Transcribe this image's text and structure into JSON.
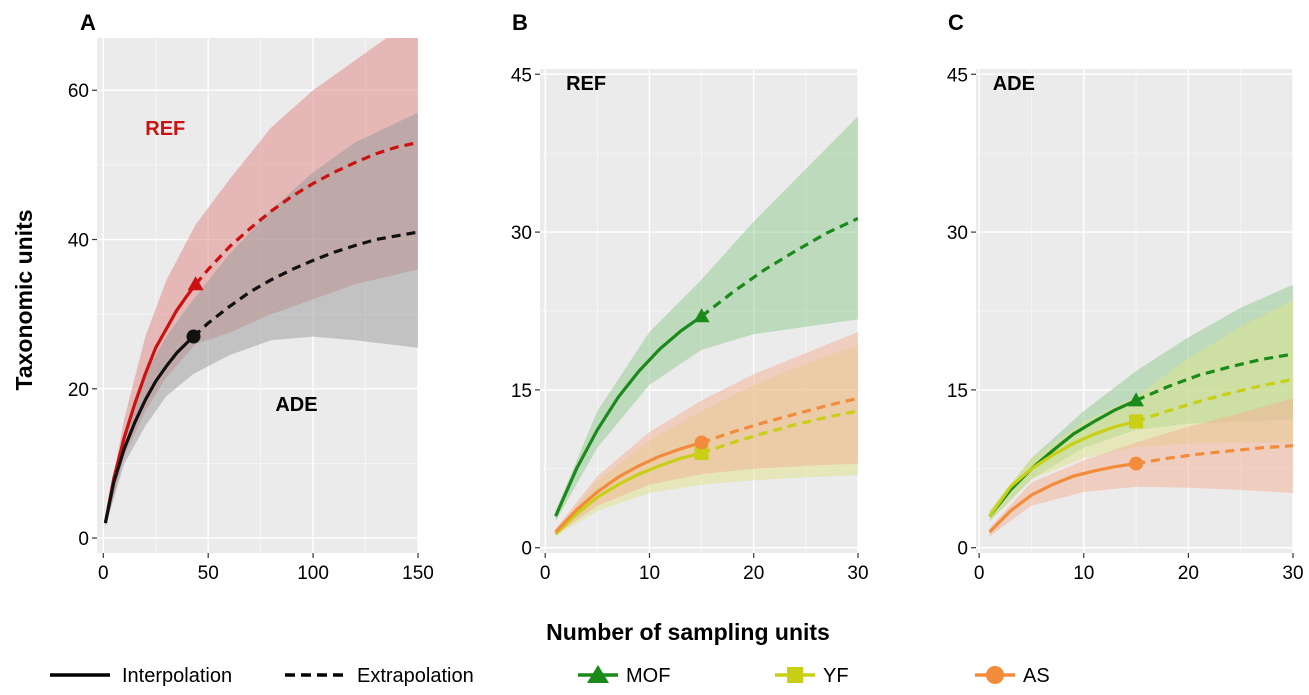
{
  "axes": {
    "xlabel": "Number of sampling units",
    "ylabel": "Taxonomic units"
  },
  "legend": {
    "line_types": [
      {
        "label": "Interpolation",
        "dash": "solid"
      },
      {
        "label": "Extrapolation",
        "dash": "dashed"
      }
    ],
    "groups": [
      {
        "label": "MOF",
        "marker": "triangle",
        "color": "#1a8a1a"
      },
      {
        "label": "YF",
        "marker": "square",
        "color": "#c8cf14"
      },
      {
        "label": "AS",
        "marker": "circle",
        "color": "#f28c3c"
      }
    ]
  },
  "chart_data": [
    {
      "panel": "A",
      "type": "line",
      "xlim": [
        -3,
        150
      ],
      "ylim": [
        -2,
        67
      ],
      "xticks": [
        0,
        50,
        100,
        150
      ],
      "yticks": [
        0,
        20,
        40,
        60
      ],
      "xtick_labels": [
        "0",
        "50",
        "100",
        "150"
      ],
      "ytick_labels": [
        "0",
        "20",
        "40",
        "60"
      ],
      "annotations": [
        {
          "text": "REF",
          "x": 20,
          "y": 54,
          "color": "#cc1111"
        },
        {
          "text": "ADE",
          "x": 82,
          "y": 17,
          "color": "#000000"
        }
      ],
      "series": [
        {
          "name": "REF",
          "color": "#cc1111",
          "band_color": "#e08484",
          "marker": "triangle",
          "ref_x": 44,
          "ref_y": 34,
          "interp_x": [
            1,
            5,
            10,
            15,
            20,
            25,
            30,
            35,
            40,
            44
          ],
          "interp_y": [
            2,
            8,
            13.5,
            18,
            22,
            25.5,
            28,
            30.5,
            32.5,
            34
          ],
          "extrap_x": [
            44,
            50,
            60,
            70,
            80,
            90,
            100,
            110,
            120,
            130,
            140,
            150
          ],
          "extrap_y": [
            34,
            36,
            39,
            41.5,
            43.8,
            45.8,
            47.5,
            49,
            50.3,
            51.5,
            52.4,
            53
          ],
          "band_x": [
            1,
            10,
            20,
            30,
            44,
            60,
            80,
            100,
            120,
            150
          ],
          "band_lower": [
            1.5,
            11,
            17,
            21.5,
            26,
            27.5,
            30,
            32,
            34,
            36
          ],
          "band_upper": [
            2.5,
            16,
            27,
            34.5,
            42,
            48,
            55,
            60,
            64,
            70
          ]
        },
        {
          "name": "ADE",
          "color": "#111111",
          "band_color": "#9a9a9a",
          "marker": "circle",
          "ref_x": 43,
          "ref_y": 27,
          "interp_x": [
            1,
            5,
            10,
            15,
            20,
            25,
            30,
            35,
            40,
            43
          ],
          "interp_y": [
            2,
            7.5,
            12,
            15.5,
            18.5,
            21,
            23,
            24.8,
            26.2,
            27
          ],
          "extrap_x": [
            43,
            50,
            60,
            70,
            80,
            90,
            100,
            110,
            120,
            130,
            140,
            150
          ],
          "extrap_y": [
            27,
            28.8,
            31,
            33,
            34.6,
            36,
            37.2,
            38.3,
            39.2,
            40,
            40.5,
            41
          ],
          "band_x": [
            1,
            10,
            20,
            30,
            43,
            60,
            80,
            100,
            120,
            150
          ],
          "band_lower": [
            1.5,
            10,
            15,
            19,
            22,
            24.5,
            26.5,
            27,
            26.5,
            25.5
          ],
          "band_upper": [
            2.5,
            14,
            22,
            27,
            32,
            38,
            44,
            49,
            53,
            57
          ]
        }
      ]
    },
    {
      "panel": "B",
      "type": "line",
      "xlim": [
        -0.5,
        30
      ],
      "ylim": [
        -0.5,
        45.5
      ],
      "xticks": [
        0,
        10,
        20,
        30
      ],
      "yticks": [
        0,
        15,
        30,
        45
      ],
      "xtick_labels": [
        "0",
        "10",
        "20",
        "30"
      ],
      "ytick_labels": [
        "0",
        "15",
        "30",
        "45"
      ],
      "annotations": [
        {
          "text": "REF",
          "x": 2,
          "y": 43.5,
          "color": "#000000"
        }
      ],
      "series": [
        {
          "name": "MOF",
          "color": "#1a8a1a",
          "band_color": "#8fc98f",
          "marker": "triangle",
          "ref_x": 15,
          "ref_y": 22,
          "interp_x": [
            1,
            3,
            5,
            7,
            9,
            11,
            13,
            15
          ],
          "interp_y": [
            3,
            7.5,
            11.2,
            14.3,
            16.8,
            18.9,
            20.6,
            22
          ],
          "extrap_x": [
            15,
            18,
            21,
            24,
            27,
            30
          ],
          "extrap_y": [
            22,
            24.3,
            26.4,
            28.2,
            29.9,
            31.3
          ],
          "band_x": [
            1,
            5,
            10,
            15,
            20,
            25,
            30
          ],
          "band_lower": [
            2.5,
            9.5,
            15.5,
            18.8,
            20.3,
            21,
            21.7
          ],
          "band_upper": [
            3.5,
            13,
            20.5,
            25.5,
            31,
            36,
            41
          ]
        },
        {
          "name": "YF",
          "color": "#c8cf14",
          "band_color": "#dfe48a",
          "marker": "square",
          "ref_x": 15,
          "ref_y": 9,
          "interp_x": [
            1,
            3,
            5,
            7,
            9,
            11,
            13,
            15
          ],
          "interp_y": [
            1.3,
            3.2,
            4.8,
            6,
            7,
            7.8,
            8.5,
            9
          ],
          "extrap_x": [
            15,
            18,
            21,
            24,
            27,
            30
          ],
          "extrap_y": [
            9,
            10,
            10.9,
            11.7,
            12.4,
            13
          ],
          "band_x": [
            1,
            5,
            10,
            15,
            20,
            25,
            30
          ],
          "band_lower": [
            1.1,
            3.5,
            5.2,
            6,
            6.4,
            6.7,
            6.9
          ],
          "band_upper": [
            1.6,
            6.3,
            10.2,
            13,
            15.5,
            17.5,
            19.3
          ]
        },
        {
          "name": "AS",
          "color": "#f28c3c",
          "band_color": "#f4b093",
          "marker": "circle",
          "ref_x": 15,
          "ref_y": 10,
          "interp_x": [
            1,
            3,
            5,
            7,
            9,
            11,
            13,
            15
          ],
          "interp_y": [
            1.5,
            3.6,
            5.3,
            6.7,
            7.8,
            8.7,
            9.4,
            10
          ],
          "extrap_x": [
            15,
            18,
            21,
            24,
            27,
            30
          ],
          "extrap_y": [
            10,
            11,
            11.9,
            12.7,
            13.5,
            14.2
          ],
          "band_x": [
            1,
            5,
            10,
            15,
            20,
            25,
            30
          ],
          "band_lower": [
            1.2,
            4,
            6,
            7,
            7.5,
            7.8,
            8
          ],
          "band_upper": [
            1.8,
            6.8,
            11,
            14,
            16.5,
            18.5,
            20.5
          ]
        }
      ]
    },
    {
      "panel": "C",
      "type": "line",
      "xlim": [
        -0.3,
        30
      ],
      "ylim": [
        -0.5,
        45.5
      ],
      "xticks": [
        0,
        10,
        20,
        30
      ],
      "yticks": [
        0,
        15,
        30,
        45
      ],
      "xtick_labels": [
        "0",
        "10",
        "20",
        "30"
      ],
      "ytick_labels": [
        "0",
        "15",
        "30",
        "45"
      ],
      "annotations": [
        {
          "text": "ADE",
          "x": 1.3,
          "y": 43.5,
          "color": "#000000"
        }
      ],
      "series": [
        {
          "name": "MOF",
          "color": "#1a8a1a",
          "band_color": "#8fc98f",
          "marker": "triangle",
          "ref_x": 15,
          "ref_y": 14,
          "interp_x": [
            1,
            3,
            5,
            7,
            9,
            11,
            13,
            15
          ],
          "interp_y": [
            3,
            5.5,
            7.5,
            9.2,
            10.8,
            12,
            13.1,
            14
          ],
          "extrap_x": [
            15,
            18,
            21,
            24,
            27,
            30
          ],
          "extrap_y": [
            14,
            15.3,
            16.4,
            17.2,
            17.9,
            18.4
          ],
          "band_x": [
            1,
            5,
            10,
            15,
            20,
            25,
            30
          ],
          "band_lower": [
            2.5,
            6.5,
            9.5,
            11.2,
            11.8,
            12,
            12.2
          ],
          "band_upper": [
            3.5,
            8.5,
            13,
            16.8,
            20,
            22.8,
            25
          ]
        },
        {
          "name": "YF",
          "color": "#c8cf14",
          "band_color": "#dfe48a",
          "marker": "square",
          "ref_x": 15,
          "ref_y": 12,
          "interp_x": [
            1,
            3,
            5,
            7,
            9,
            11,
            13,
            15
          ],
          "interp_y": [
            3,
            5.8,
            7.5,
            8.8,
            9.9,
            10.8,
            11.5,
            12
          ],
          "extrap_x": [
            15,
            18,
            21,
            24,
            27,
            30
          ],
          "extrap_y": [
            12,
            13,
            13.9,
            14.7,
            15.4,
            16
          ],
          "band_x": [
            1,
            5,
            10,
            15,
            20,
            25,
            30
          ],
          "band_lower": [
            2.5,
            6.5,
            8.5,
            9.6,
            9.9,
            10,
            10
          ],
          "band_upper": [
            3.5,
            8.5,
            12,
            14.4,
            18,
            21,
            23.5
          ]
        },
        {
          "name": "AS",
          "color": "#f28c3c",
          "band_color": "#f4b093",
          "marker": "circle",
          "ref_x": 15,
          "ref_y": 8,
          "interp_x": [
            1,
            3,
            5,
            7,
            9,
            11,
            13,
            15
          ],
          "interp_y": [
            1.5,
            3.5,
            5,
            6,
            6.8,
            7.3,
            7.7,
            8
          ],
          "extrap_x": [
            15,
            18,
            21,
            24,
            27,
            30
          ],
          "extrap_y": [
            8,
            8.5,
            8.9,
            9.2,
            9.5,
            9.7
          ],
          "band_x": [
            1,
            5,
            10,
            15,
            20,
            25,
            30
          ],
          "band_lower": [
            1.1,
            4,
            5.3,
            5.8,
            5.7,
            5.5,
            5.2
          ],
          "band_upper": [
            1.9,
            6.2,
            8.3,
            10,
            11.5,
            12.8,
            14.2
          ]
        }
      ]
    }
  ]
}
